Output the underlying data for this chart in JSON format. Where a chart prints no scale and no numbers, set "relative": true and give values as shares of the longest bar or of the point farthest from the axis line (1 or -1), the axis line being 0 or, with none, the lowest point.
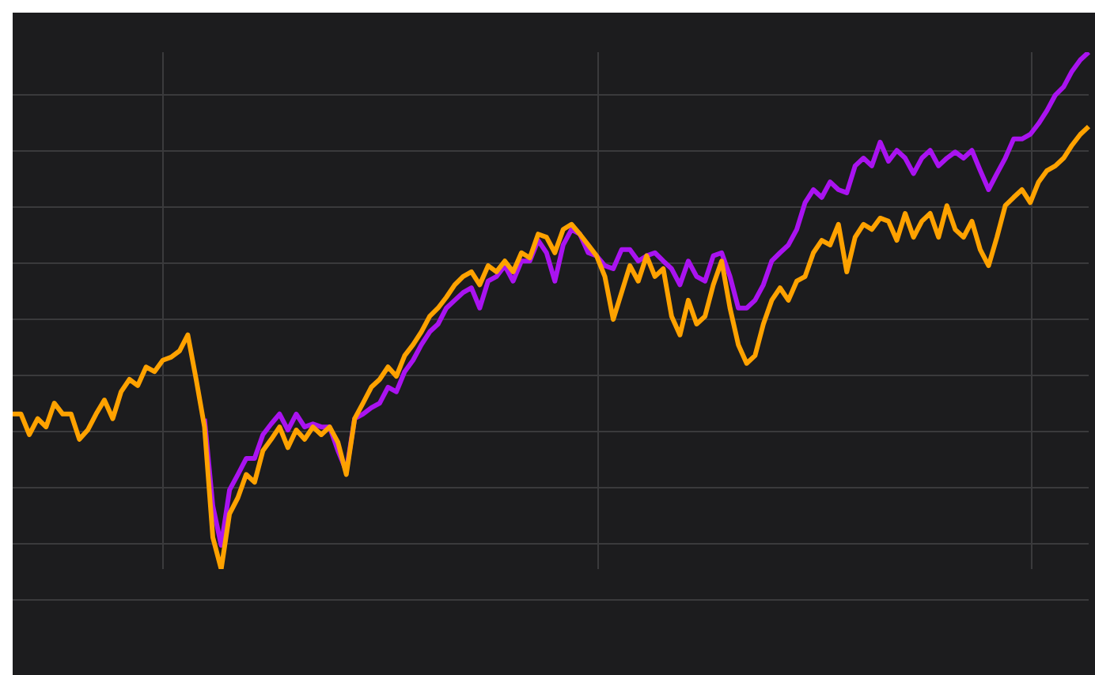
{
  "chart_data": {
    "type": "line",
    "relative": true,
    "grid": true,
    "marker": "none",
    "line_style": "solid",
    "categories": [
      null,
      null,
      null,
      null,
      null,
      null,
      null,
      null,
      null,
      null,
      null,
      null,
      null,
      null,
      null,
      null,
      null,
      null,
      null,
      null,
      null,
      null,
      null,
      null,
      null,
      null,
      null,
      null,
      null,
      null,
      null,
      null,
      null,
      null,
      null,
      null,
      null,
      null,
      null,
      null,
      null,
      null,
      null,
      null,
      null,
      null,
      null,
      null,
      null,
      null,
      null,
      null,
      null,
      null,
      null,
      null,
      null,
      null,
      null,
      null,
      null,
      null,
      null,
      null,
      null,
      null,
      null,
      null,
      null,
      null,
      null,
      null,
      null,
      null,
      null,
      null,
      null,
      null,
      null,
      null,
      null,
      null,
      null,
      null,
      null,
      null,
      null,
      null,
      null,
      null,
      null,
      null,
      null,
      null,
      null,
      null,
      null,
      null,
      null,
      null,
      null,
      null,
      null,
      null,
      null,
      null,
      null,
      null,
      null,
      null,
      null,
      null,
      null,
      null,
      null,
      null,
      null,
      null,
      null,
      null,
      null,
      null,
      null,
      null,
      null,
      null,
      null,
      null,
      null,
      null
    ],
    "series": [
      {
        "color": "#a913f0",
        "values": [
          null,
          null,
          null,
          null,
          null,
          null,
          null,
          null,
          null,
          null,
          null,
          null,
          null,
          null,
          null,
          null,
          null,
          null,
          null,
          null,
          null,
          null,
          null,
          0.291,
          0.122,
          0.046,
          0.153,
          0.183,
          0.214,
          0.214,
          0.26,
          0.281,
          0.3,
          0.269,
          0.3,
          0.275,
          0.281,
          0.275,
          0.275,
          0.229,
          0.19,
          0.291,
          0.3,
          0.312,
          0.321,
          0.352,
          0.343,
          0.382,
          0.404,
          0.434,
          0.459,
          0.474,
          0.505,
          0.52,
          0.535,
          0.544,
          0.505,
          0.557,
          0.566,
          0.587,
          0.557,
          0.596,
          0.596,
          0.636,
          0.612,
          0.557,
          0.627,
          0.657,
          0.648,
          0.612,
          0.606,
          0.587,
          0.581,
          0.618,
          0.618,
          0.596,
          0.606,
          0.612,
          0.596,
          0.581,
          0.55,
          0.596,
          0.566,
          0.557,
          0.606,
          0.612,
          0.566,
          0.505,
          0.505,
          0.52,
          0.55,
          0.596,
          0.612,
          0.627,
          0.657,
          0.709,
          0.734,
          0.719,
          0.749,
          0.734,
          0.728,
          0.78,
          0.795,
          0.78,
          0.826,
          0.789,
          0.81,
          0.795,
          0.765,
          0.795,
          0.81,
          0.78,
          0.795,
          0.807,
          0.795,
          0.81,
          0.771,
          0.734,
          0.765,
          0.795,
          0.832,
          0.832,
          0.841,
          0.862,
          0.887,
          0.917,
          0.933,
          0.963,
          0.985,
          1
        ]
      },
      {
        "color": "#ffa200",
        "values": [
          0.3,
          0.3,
          0.26,
          0.291,
          0.275,
          0.321,
          0.3,
          0.3,
          0.251,
          0.269,
          0.3,
          0.327,
          0.291,
          0.343,
          0.367,
          0.355,
          0.391,
          0.382,
          0.404,
          0.41,
          0.422,
          0.453,
          0.367,
          0.275,
          0.061,
          0,
          0.107,
          0.138,
          0.183,
          0.168,
          0.229,
          0.251,
          0.275,
          0.235,
          0.269,
          0.251,
          0.275,
          0.26,
          0.275,
          0.245,
          0.183,
          0.291,
          0.321,
          0.352,
          0.367,
          0.391,
          0.373,
          0.413,
          0.434,
          0.459,
          0.489,
          0.505,
          0.526,
          0.55,
          0.566,
          0.575,
          0.55,
          0.587,
          0.575,
          0.596,
          0.575,
          0.612,
          0.602,
          0.648,
          0.642,
          0.612,
          0.657,
          0.667,
          0.648,
          0.627,
          0.606,
          0.566,
          0.483,
          0.535,
          0.587,
          0.557,
          0.606,
          0.566,
          0.581,
          0.489,
          0.453,
          0.52,
          0.474,
          0.489,
          0.55,
          0.596,
          0.505,
          0.434,
          0.398,
          0.413,
          0.474,
          0.52,
          0.544,
          0.52,
          0.557,
          0.566,
          0.612,
          0.636,
          0.627,
          0.667,
          0.575,
          0.642,
          0.667,
          0.657,
          0.679,
          0.673,
          0.636,
          0.688,
          0.642,
          0.673,
          0.688,
          0.642,
          0.703,
          0.657,
          0.642,
          0.673,
          0.618,
          0.587,
          0.642,
          0.703,
          0.719,
          0.734,
          0.709,
          0.749,
          0.771,
          0.78,
          0.795,
          0.82,
          0.841,
          0.856
        ]
      }
    ]
  }
}
